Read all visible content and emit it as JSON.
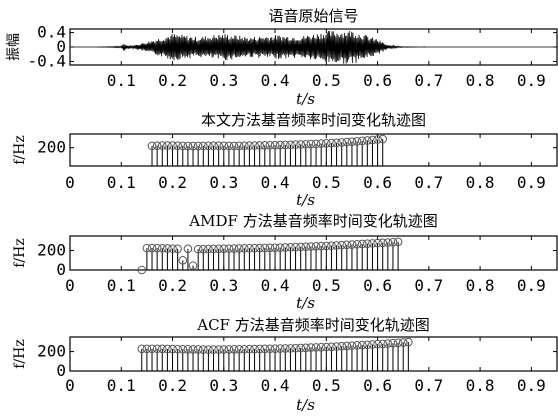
{
  "chart_data": [
    {
      "type": "line",
      "title": "语音原始信号",
      "xlabel": "t/s",
      "ylabel": "振幅",
      "xlim": [
        0,
        0.95
      ],
      "ylim": [
        -0.5,
        0.5
      ],
      "xticks": [
        "0.1",
        "0.2",
        "0.3",
        "0.4",
        "0.5",
        "0.6",
        "0.7",
        "0.8",
        "0.9"
      ],
      "xtick_values": [
        0.1,
        0.2,
        0.3,
        0.4,
        0.5,
        0.6,
        0.7,
        0.8,
        0.9
      ],
      "yticks": [
        "0.4",
        "0",
        "-0.4"
      ],
      "ytick_values": [
        0.4,
        0,
        -0.4
      ],
      "series": [
        {
          "x": [
            0.0,
            0.05,
            0.1,
            0.105,
            0.11,
            0.12,
            0.15,
            0.18,
            0.2,
            0.25,
            0.3,
            0.35,
            0.4,
            0.45,
            0.5,
            0.55,
            0.6,
            0.62,
            0.65,
            0.7,
            0.95
          ],
          "envelope": [
            0.0,
            0.0,
            0.02,
            0.12,
            0.06,
            0.03,
            0.15,
            0.28,
            0.38,
            0.28,
            0.38,
            0.28,
            0.34,
            0.3,
            0.45,
            0.48,
            0.22,
            0.05,
            0.01,
            0.0,
            0.0
          ]
        }
      ]
    },
    {
      "type": "stem",
      "title": "本文方法基音频率时间变化轨迹图",
      "xlabel": "t/s",
      "ylabel": "f/Hz",
      "xlim": [
        0,
        0.95
      ],
      "ylim": [
        0,
        350
      ],
      "xticks": [
        "0",
        "0.1",
        "0.2",
        "0.3",
        "0.4",
        "0.5",
        "0.6",
        "0.7",
        "0.8",
        "0.9"
      ],
      "xtick_values": [
        0,
        0.1,
        0.2,
        0.3,
        0.4,
        0.5,
        0.6,
        0.7,
        0.8,
        0.9
      ],
      "yticks": [
        "200"
      ],
      "ytick_values": [
        200
      ],
      "series": [
        {
          "x": [
            0.16,
            0.17,
            0.18,
            0.19,
            0.2,
            0.21,
            0.22,
            0.23,
            0.24,
            0.25,
            0.26,
            0.27,
            0.28,
            0.29,
            0.3,
            0.31,
            0.32,
            0.33,
            0.34,
            0.35,
            0.36,
            0.37,
            0.38,
            0.39,
            0.4,
            0.41,
            0.42,
            0.43,
            0.44,
            0.45,
            0.46,
            0.47,
            0.48,
            0.49,
            0.5,
            0.51,
            0.52,
            0.53,
            0.54,
            0.55,
            0.56,
            0.57,
            0.58,
            0.59,
            0.6,
            0.61
          ],
          "y": [
            220,
            222,
            224,
            225,
            224,
            222,
            220,
            219,
            218,
            219,
            220,
            221,
            222,
            222,
            221,
            220,
            220,
            221,
            222,
            223,
            224,
            225,
            226,
            227,
            228,
            229,
            230,
            232,
            234,
            236,
            238,
            240,
            242,
            245,
            248,
            251,
            254,
            258,
            262,
            266,
            270,
            275,
            280,
            285,
            290,
            295
          ]
        }
      ]
    },
    {
      "type": "stem",
      "title": "AMDF 方法基音频率时间变化轨迹图",
      "xlabel": "t/s",
      "ylabel": "f/Hz",
      "xlim": [
        0,
        0.95
      ],
      "ylim": [
        0,
        350
      ],
      "xticks": [
        "0",
        "0.1",
        "0.2",
        "0.3",
        "0.4",
        "0.5",
        "0.6",
        "0.7",
        "0.8",
        "0.9"
      ],
      "xtick_values": [
        0,
        0.1,
        0.2,
        0.3,
        0.4,
        0.5,
        0.6,
        0.7,
        0.8,
        0.9
      ],
      "yticks": [
        "200",
        "0"
      ],
      "ytick_values": [
        200,
        0
      ],
      "series": [
        {
          "x": [
            0.14,
            0.15,
            0.16,
            0.17,
            0.18,
            0.19,
            0.2,
            0.21,
            0.22,
            0.23,
            0.24,
            0.25,
            0.26,
            0.27,
            0.28,
            0.29,
            0.3,
            0.31,
            0.32,
            0.33,
            0.34,
            0.35,
            0.36,
            0.37,
            0.38,
            0.39,
            0.4,
            0.41,
            0.42,
            0.43,
            0.44,
            0.45,
            0.46,
            0.47,
            0.48,
            0.49,
            0.5,
            0.51,
            0.52,
            0.53,
            0.54,
            0.55,
            0.56,
            0.57,
            0.58,
            0.59,
            0.6,
            0.61,
            0.62,
            0.63,
            0.64
          ],
          "y": [
            0,
            225,
            226,
            225,
            224,
            222,
            220,
            218,
            100,
            218,
            45,
            215,
            214,
            216,
            217,
            218,
            219,
            220,
            221,
            222,
            223,
            224,
            225,
            226,
            227,
            228,
            229,
            230,
            232,
            234,
            236,
            238,
            240,
            242,
            244,
            246,
            248,
            250,
            253,
            256,
            259,
            262,
            265,
            268,
            271,
            274,
            277,
            280,
            283,
            286,
            290
          ]
        }
      ]
    },
    {
      "type": "stem",
      "title": "ACF 方法基音频率时间变化轨迹图",
      "xlabel": "t/s",
      "ylabel": "f/Hz",
      "xlim": [
        0,
        0.95
      ],
      "ylim": [
        0,
        350
      ],
      "xticks": [
        "0",
        "0.1",
        "0.2",
        "0.3",
        "0.4",
        "0.5",
        "0.6",
        "0.7",
        "0.8",
        "0.9"
      ],
      "xtick_values": [
        0,
        0.1,
        0.2,
        0.3,
        0.4,
        0.5,
        0.6,
        0.7,
        0.8,
        0.9
      ],
      "yticks": [
        "200",
        "0"
      ],
      "ytick_values": [
        200,
        0
      ],
      "series": [
        {
          "x": [
            0.14,
            0.15,
            0.16,
            0.17,
            0.18,
            0.19,
            0.2,
            0.21,
            0.22,
            0.23,
            0.24,
            0.25,
            0.26,
            0.27,
            0.28,
            0.29,
            0.3,
            0.31,
            0.32,
            0.33,
            0.34,
            0.35,
            0.36,
            0.37,
            0.38,
            0.39,
            0.4,
            0.41,
            0.42,
            0.43,
            0.44,
            0.45,
            0.46,
            0.47,
            0.48,
            0.49,
            0.5,
            0.51,
            0.52,
            0.53,
            0.54,
            0.55,
            0.56,
            0.57,
            0.58,
            0.59,
            0.6,
            0.61,
            0.62,
            0.63,
            0.64,
            0.65,
            0.66
          ],
          "y": [
            228,
            228,
            229,
            229,
            228,
            227,
            226,
            225,
            224,
            223,
            222,
            222,
            221,
            221,
            221,
            221,
            222,
            222,
            223,
            223,
            224,
            225,
            226,
            227,
            228,
            229,
            230,
            231,
            232,
            233,
            235,
            237,
            239,
            241,
            243,
            245,
            247,
            249,
            252,
            255,
            258,
            261,
            264,
            267,
            270,
            273,
            276,
            279,
            282,
            286,
            290,
            294,
            298
          ]
        }
      ]
    }
  ]
}
